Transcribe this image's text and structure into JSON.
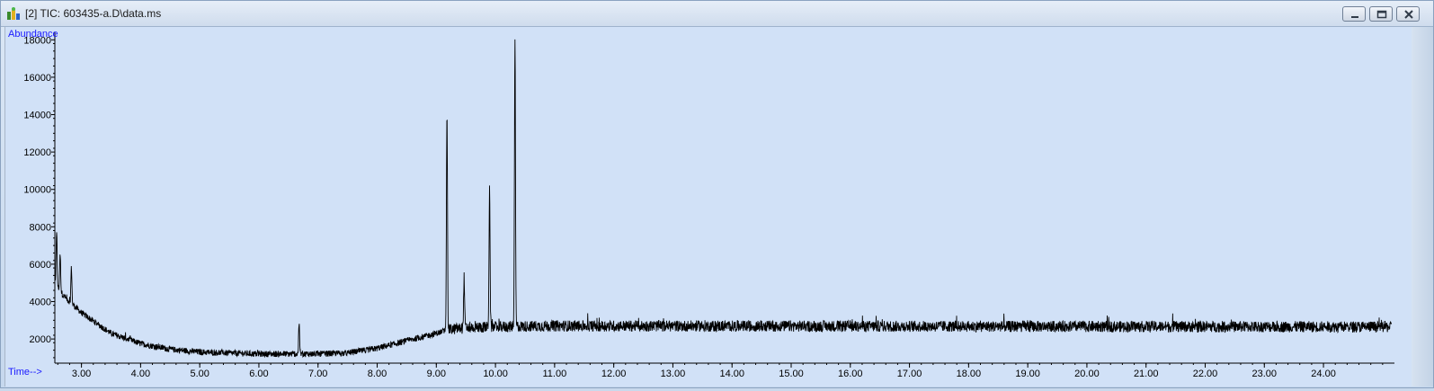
{
  "window": {
    "title": "[2] TIC: 603435-a.D\\data.ms",
    "app_icon": "chemstation-data-icon",
    "controls": [
      "minimize-icon",
      "restore-icon",
      "close-icon"
    ]
  },
  "colors": {
    "plot_background": "#d1e1f7",
    "trace": "#000000",
    "axis_label": "#1a1aff"
  },
  "chart_data": {
    "type": "line",
    "ylabel": "Abundance",
    "xlabel": "Time-->",
    "xlim": [
      2.55,
      25.2
    ],
    "ylim": [
      900,
      18400
    ],
    "x_ticks": [
      "3.00",
      "4.00",
      "5.00",
      "6.00",
      "7.00",
      "8.00",
      "9.00",
      "10.00",
      "11.00",
      "12.00",
      "13.00",
      "14.00",
      "15.00",
      "16.00",
      "17.00",
      "18.00",
      "19.00",
      "20.00",
      "21.00",
      "22.00",
      "23.00",
      "24.00"
    ],
    "y_ticks": [
      "2000",
      "4000",
      "6000",
      "8000",
      "10000",
      "12000",
      "14000",
      "16000",
      "18000"
    ],
    "baseline": [
      [
        2.55,
        5000
      ],
      [
        2.7,
        4300
      ],
      [
        3.0,
        3400
      ],
      [
        3.5,
        2300
      ],
      [
        4.0,
        1750
      ],
      [
        4.5,
        1450
      ],
      [
        5.0,
        1300
      ],
      [
        6.0,
        1200
      ],
      [
        7.0,
        1200
      ],
      [
        7.5,
        1250
      ],
      [
        8.0,
        1500
      ],
      [
        8.5,
        1900
      ],
      [
        9.0,
        2300
      ],
      [
        9.2,
        2500
      ],
      [
        9.5,
        2600
      ],
      [
        10.0,
        2650
      ],
      [
        11.0,
        2700
      ],
      [
        25.0,
        2650
      ]
    ],
    "peaks": [
      {
        "rt": 2.58,
        "height": 7800
      },
      {
        "rt": 2.64,
        "height": 6500
      },
      {
        "rt": 2.83,
        "height": 5800
      },
      {
        "rt": 6.68,
        "height": 2700
      },
      {
        "rt": 9.18,
        "height": 14200
      },
      {
        "rt": 9.47,
        "height": 5300
      },
      {
        "rt": 9.9,
        "height": 10100
      },
      {
        "rt": 10.33,
        "height": 18000
      }
    ],
    "noise_amplitude": 300,
    "grid": false
  }
}
